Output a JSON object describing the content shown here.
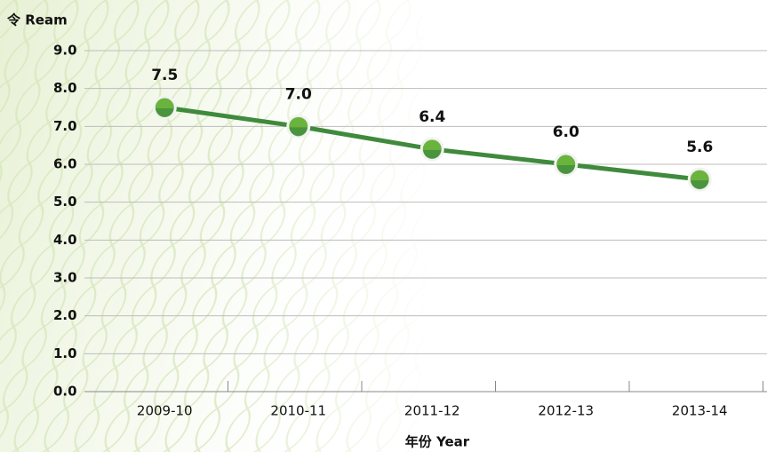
{
  "chart_data": {
    "type": "line",
    "y_label": "令 Ream",
    "x_label": "年份 Year",
    "categories": [
      "2009-10",
      "2010-11",
      "2011-12",
      "2012-13",
      "2013-14"
    ],
    "values": [
      7.5,
      7.0,
      6.4,
      6.0,
      5.6
    ],
    "value_labels": [
      "7.5",
      "7.0",
      "6.4",
      "6.0",
      "5.6"
    ],
    "color": "#3f8a3c",
    "marker_color": "#6ab43e",
    "ylim": [
      0,
      9
    ],
    "yticks": [
      {
        "value": 0,
        "label": "0.0"
      },
      {
        "value": 1,
        "label": "1.0"
      },
      {
        "value": 2,
        "label": "2.0"
      },
      {
        "value": 3,
        "label": "3.0"
      },
      {
        "value": 4,
        "label": "4.0"
      },
      {
        "value": 5,
        "label": "5.0"
      },
      {
        "value": 6,
        "label": "6.0"
      },
      {
        "value": 7,
        "label": "7.0"
      },
      {
        "value": 8,
        "label": "8.0"
      },
      {
        "value": 9,
        "label": "9.0"
      }
    ],
    "grid": true
  }
}
